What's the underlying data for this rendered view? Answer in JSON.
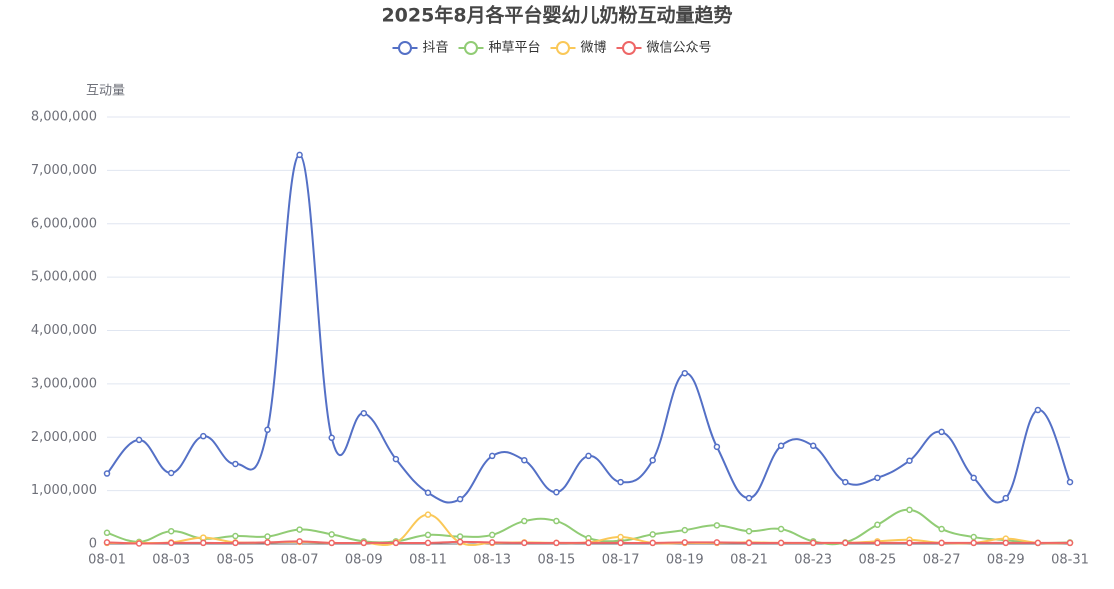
{
  "chart_data": {
    "type": "line",
    "title": "2025年8月各平台婴幼儿奶粉互动量趋势",
    "y_label": "互动量",
    "categories": [
      "08-01",
      null,
      "08-03",
      null,
      "08-05",
      null,
      "08-07",
      null,
      "08-09",
      null,
      "08-11",
      null,
      "08-13",
      null,
      "08-15",
      null,
      "08-17",
      null,
      "08-19",
      null,
      "08-21",
      null,
      "08-23",
      null,
      "08-25",
      null,
      "08-27",
      null,
      "08-29",
      null,
      "08-31"
    ],
    "series": [
      {
        "name": "抖音",
        "color": "#5470c6",
        "values": [
          1320000,
          1950000,
          1330000,
          2020000,
          1500000,
          2140000,
          7290000,
          1990000,
          2450000,
          1590000,
          960000,
          840000,
          1650000,
          1570000,
          970000,
          1650000,
          1160000,
          1570000,
          3200000,
          1820000,
          860000,
          1840000,
          1840000,
          1160000,
          1240000,
          1560000,
          2100000,
          1240000,
          860000,
          2510000,
          1160000
        ]
      },
      {
        "name": "种草平台",
        "color": "#91cc75",
        "values": [
          210000,
          40000,
          240000,
          100000,
          150000,
          140000,
          270000,
          180000,
          50000,
          50000,
          170000,
          140000,
          170000,
          430000,
          430000,
          110000,
          60000,
          180000,
          260000,
          350000,
          240000,
          280000,
          50000,
          30000,
          360000,
          640000,
          280000,
          130000,
          70000,
          20000,
          30000
        ]
      },
      {
        "name": "微博",
        "color": "#fac858",
        "values": [
          20000,
          20000,
          30000,
          120000,
          30000,
          30000,
          40000,
          20000,
          20000,
          30000,
          550000,
          30000,
          20000,
          30000,
          20000,
          30000,
          130000,
          20000,
          20000,
          20000,
          30000,
          20000,
          20000,
          20000,
          50000,
          80000,
          20000,
          20000,
          100000,
          20000,
          20000
        ]
      },
      {
        "name": "微信公众号",
        "color": "#ee6666",
        "values": [
          30000,
          10000,
          20000,
          20000,
          20000,
          30000,
          50000,
          20000,
          20000,
          20000,
          20000,
          40000,
          30000,
          20000,
          20000,
          20000,
          20000,
          20000,
          30000,
          30000,
          20000,
          20000,
          20000,
          20000,
          20000,
          20000,
          20000,
          20000,
          20000,
          20000,
          20000
        ]
      }
    ],
    "ylim": [
      0,
      8000000
    ],
    "yticks": [
      0,
      {
        "value": 1000000,
        "label": "1,000,000"
      },
      {
        "value": 2000000,
        "label": "2,000,000"
      },
      {
        "value": 3000000,
        "label": "3,000,000"
      },
      {
        "value": 4000000,
        "label": "4,000,000"
      },
      {
        "value": 5000000,
        "label": "5,000,000"
      },
      {
        "value": 6000000,
        "label": "6,000,000"
      },
      {
        "value": 7000000,
        "label": "7,000,000"
      },
      {
        "value": 8000000,
        "label": "8,000,000"
      }
    ],
    "grid": true,
    "smooth": true,
    "legend": "top"
  }
}
